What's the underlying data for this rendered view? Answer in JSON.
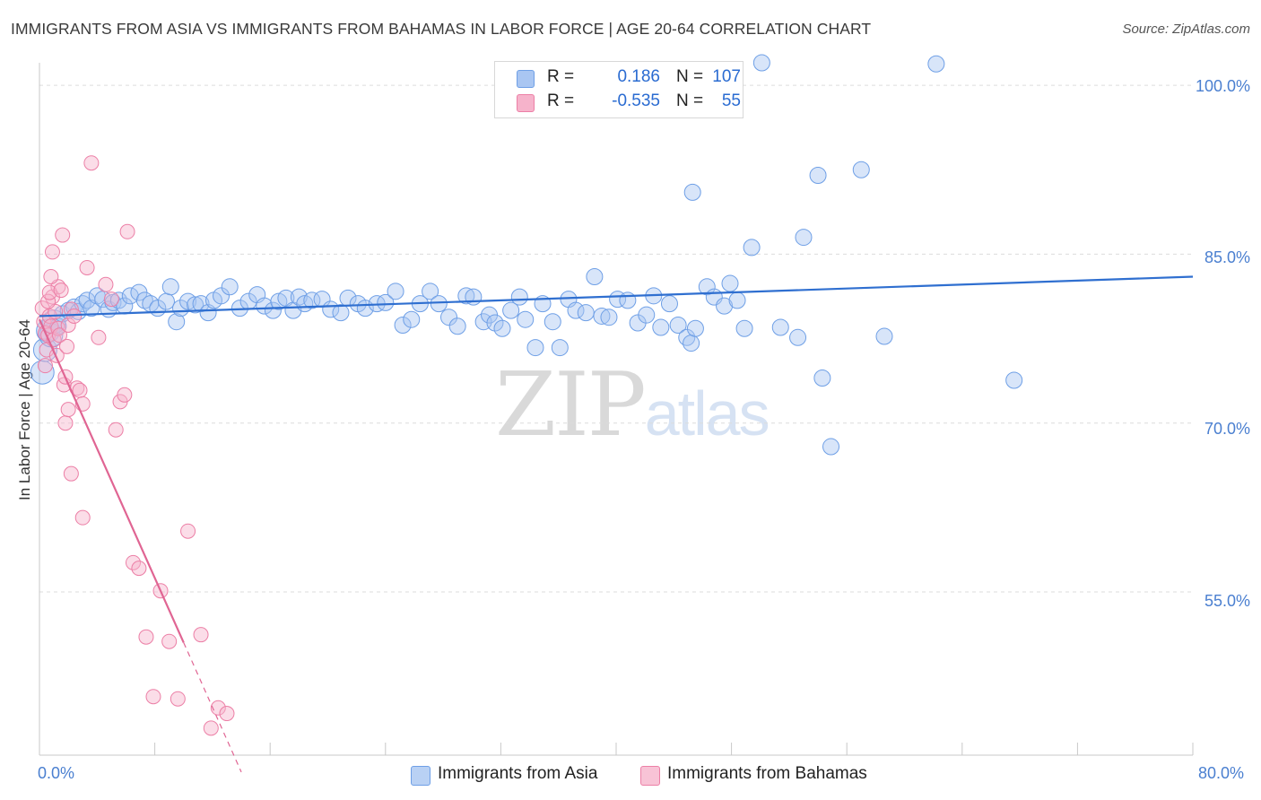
{
  "chart_data": {
    "type": "scatter",
    "title": "IMMIGRANTS FROM ASIA VS IMMIGRANTS FROM BAHAMAS IN LABOR FORCE | AGE 20-64 CORRELATION CHART",
    "source": "Source: ZipAtlas.com",
    "xlabel": "",
    "ylabel": "In Labor Force | Age 20-64",
    "xlim": [
      0,
      80
    ],
    "ylim": [
      40.5,
      102
    ],
    "x_tick_labels": [
      "0.0%",
      "80.0%"
    ],
    "y_ticks": [
      55,
      70,
      85,
      100
    ],
    "y_tick_labels": [
      "55.0%",
      "70.0%",
      "85.0%",
      "100.0%"
    ],
    "grid": true,
    "watermark": {
      "zip": "ZIP",
      "atlas": "atlas"
    },
    "legend": {
      "rows": [
        {
          "r_label": "R =",
          "r_value": "0.186",
          "n_label": "N =",
          "n_value": "107"
        },
        {
          "r_label": "R =",
          "r_value": "-0.535",
          "n_label": "N =",
          "n_value": "55"
        }
      ]
    },
    "series": [
      {
        "name": "Immigrants from Asia",
        "color": "#6e9fe6",
        "fill": "#a9c6f2",
        "line_color": "#2f6fd0",
        "trend": {
          "x": [
            0,
            80
          ],
          "y": [
            79.5,
            83.0
          ]
        },
        "points": [
          [
            0.2,
            74.5
          ],
          [
            0.4,
            76.5
          ],
          [
            0.6,
            78.2
          ],
          [
            0.8,
            77.8
          ],
          [
            1.0,
            79.0
          ],
          [
            1.3,
            78.6
          ],
          [
            1.6,
            79.7
          ],
          [
            2.0,
            80.0
          ],
          [
            2.4,
            80.3
          ],
          [
            2.7,
            79.9
          ],
          [
            3.0,
            80.6
          ],
          [
            3.3,
            80.9
          ],
          [
            3.6,
            80.2
          ],
          [
            4.0,
            81.3
          ],
          [
            4.4,
            81.0
          ],
          [
            4.8,
            80.1
          ],
          [
            5.1,
            80.7
          ],
          [
            5.5,
            80.9
          ],
          [
            5.9,
            80.4
          ],
          [
            6.3,
            81.3
          ],
          [
            6.9,
            81.6
          ],
          [
            7.3,
            80.9
          ],
          [
            7.7,
            80.6
          ],
          [
            8.2,
            80.2
          ],
          [
            8.8,
            80.8
          ],
          [
            9.1,
            82.1
          ],
          [
            9.5,
            79.0
          ],
          [
            9.8,
            80.2
          ],
          [
            10.3,
            80.8
          ],
          [
            10.8,
            80.5
          ],
          [
            11.2,
            80.6
          ],
          [
            11.7,
            79.8
          ],
          [
            12.1,
            80.9
          ],
          [
            12.6,
            81.3
          ],
          [
            13.2,
            82.1
          ],
          [
            13.9,
            80.2
          ],
          [
            14.5,
            80.8
          ],
          [
            15.1,
            81.4
          ],
          [
            15.6,
            80.4
          ],
          [
            16.2,
            80.0
          ],
          [
            16.6,
            80.8
          ],
          [
            17.1,
            81.1
          ],
          [
            17.6,
            80.0
          ],
          [
            18.0,
            81.2
          ],
          [
            18.4,
            80.6
          ],
          [
            18.9,
            80.9
          ],
          [
            19.6,
            81.0
          ],
          [
            20.2,
            80.1
          ],
          [
            20.9,
            79.8
          ],
          [
            21.4,
            81.1
          ],
          [
            22.1,
            80.6
          ],
          [
            22.6,
            80.2
          ],
          [
            23.4,
            80.6
          ],
          [
            24.0,
            80.7
          ],
          [
            24.7,
            81.7
          ],
          [
            25.2,
            78.7
          ],
          [
            25.8,
            79.2
          ],
          [
            26.4,
            80.6
          ],
          [
            27.1,
            81.7
          ],
          [
            27.7,
            80.6
          ],
          [
            28.4,
            79.4
          ],
          [
            29.0,
            78.6
          ],
          [
            29.6,
            81.3
          ],
          [
            30.1,
            81.2
          ],
          [
            30.8,
            79.0
          ],
          [
            31.2,
            79.6
          ],
          [
            31.6,
            78.9
          ],
          [
            32.1,
            78.4
          ],
          [
            32.7,
            80.0
          ],
          [
            33.3,
            81.2
          ],
          [
            33.7,
            79.2
          ],
          [
            34.4,
            76.7
          ],
          [
            34.9,
            80.6
          ],
          [
            35.6,
            79.0
          ],
          [
            36.1,
            76.7
          ],
          [
            36.7,
            81.0
          ],
          [
            37.2,
            80.0
          ],
          [
            37.9,
            79.8
          ],
          [
            38.5,
            83.0
          ],
          [
            39.0,
            79.5
          ],
          [
            39.5,
            79.4
          ],
          [
            40.1,
            81.0
          ],
          [
            40.8,
            80.9
          ],
          [
            41.5,
            78.9
          ],
          [
            42.1,
            79.6
          ],
          [
            42.6,
            81.3
          ],
          [
            43.1,
            78.5
          ],
          [
            43.7,
            80.6
          ],
          [
            44.3,
            78.7
          ],
          [
            44.9,
            77.6
          ],
          [
            45.2,
            77.1
          ],
          [
            45.5,
            78.4
          ],
          [
            46.3,
            82.1
          ],
          [
            46.8,
            81.2
          ],
          [
            47.5,
            80.4
          ],
          [
            47.9,
            82.4
          ],
          [
            48.4,
            80.9
          ],
          [
            48.9,
            78.4
          ],
          [
            45.3,
            90.5
          ],
          [
            49.4,
            85.6
          ],
          [
            50.1,
            102.0
          ],
          [
            51.4,
            78.5
          ],
          [
            52.6,
            77.6
          ],
          [
            54.0,
            92.0
          ],
          [
            53.0,
            86.5
          ],
          [
            54.3,
            74.0
          ],
          [
            54.9,
            67.9
          ],
          [
            57.0,
            92.5
          ],
          [
            58.6,
            77.7
          ],
          [
            62.2,
            101.9
          ],
          [
            67.6,
            73.8
          ]
        ]
      },
      {
        "name": "Immigrants from Bahamas",
        "color": "#ec7fa6",
        "fill": "#f6b3cb",
        "line_color": "#e06593",
        "trend": {
          "x": [
            0,
            10.0
          ],
          "y": [
            79.2,
            50.5
          ]
        },
        "trend_dashed": {
          "x": [
            10.0,
            14.0
          ],
          "y": [
            50.5,
            39.0
          ]
        },
        "points": [
          [
            0.2,
            80.2
          ],
          [
            0.3,
            79.0
          ],
          [
            0.4,
            78.0
          ],
          [
            0.5,
            76.5
          ],
          [
            0.6,
            77.8
          ],
          [
            0.7,
            79.5
          ],
          [
            0.8,
            78.6
          ],
          [
            0.9,
            81.2
          ],
          [
            1.0,
            77.4
          ],
          [
            1.1,
            79.9
          ],
          [
            1.2,
            76.0
          ],
          [
            1.3,
            82.1
          ],
          [
            0.4,
            75.1
          ],
          [
            0.6,
            80.8
          ],
          [
            0.7,
            81.6
          ],
          [
            0.8,
            83.0
          ],
          [
            0.9,
            85.2
          ],
          [
            1.3,
            78.4
          ],
          [
            1.4,
            77.8
          ],
          [
            1.5,
            81.8
          ],
          [
            1.6,
            86.7
          ],
          [
            1.7,
            73.4
          ],
          [
            1.8,
            74.1
          ],
          [
            1.9,
            76.8
          ],
          [
            2.0,
            78.7
          ],
          [
            2.2,
            80.1
          ],
          [
            2.4,
            79.5
          ],
          [
            2.6,
            73.1
          ],
          [
            2.8,
            72.9
          ],
          [
            3.0,
            71.7
          ],
          [
            3.3,
            83.8
          ],
          [
            3.6,
            93.1
          ],
          [
            4.1,
            77.6
          ],
          [
            4.6,
            82.3
          ],
          [
            5.0,
            81.0
          ],
          [
            5.3,
            69.4
          ],
          [
            5.6,
            71.9
          ],
          [
            5.9,
            72.5
          ],
          [
            6.1,
            87.0
          ],
          [
            6.5,
            57.6
          ],
          [
            6.9,
            57.1
          ],
          [
            7.4,
            51.0
          ],
          [
            7.9,
            45.7
          ],
          [
            8.4,
            55.1
          ],
          [
            9.0,
            50.6
          ],
          [
            9.6,
            45.5
          ],
          [
            10.3,
            60.4
          ],
          [
            11.2,
            51.2
          ],
          [
            11.9,
            42.9
          ],
          [
            12.4,
            44.7
          ],
          [
            13.0,
            44.2
          ],
          [
            2.2,
            65.5
          ],
          [
            3.0,
            61.6
          ],
          [
            1.8,
            70.0
          ],
          [
            2.0,
            71.2
          ]
        ]
      }
    ]
  }
}
